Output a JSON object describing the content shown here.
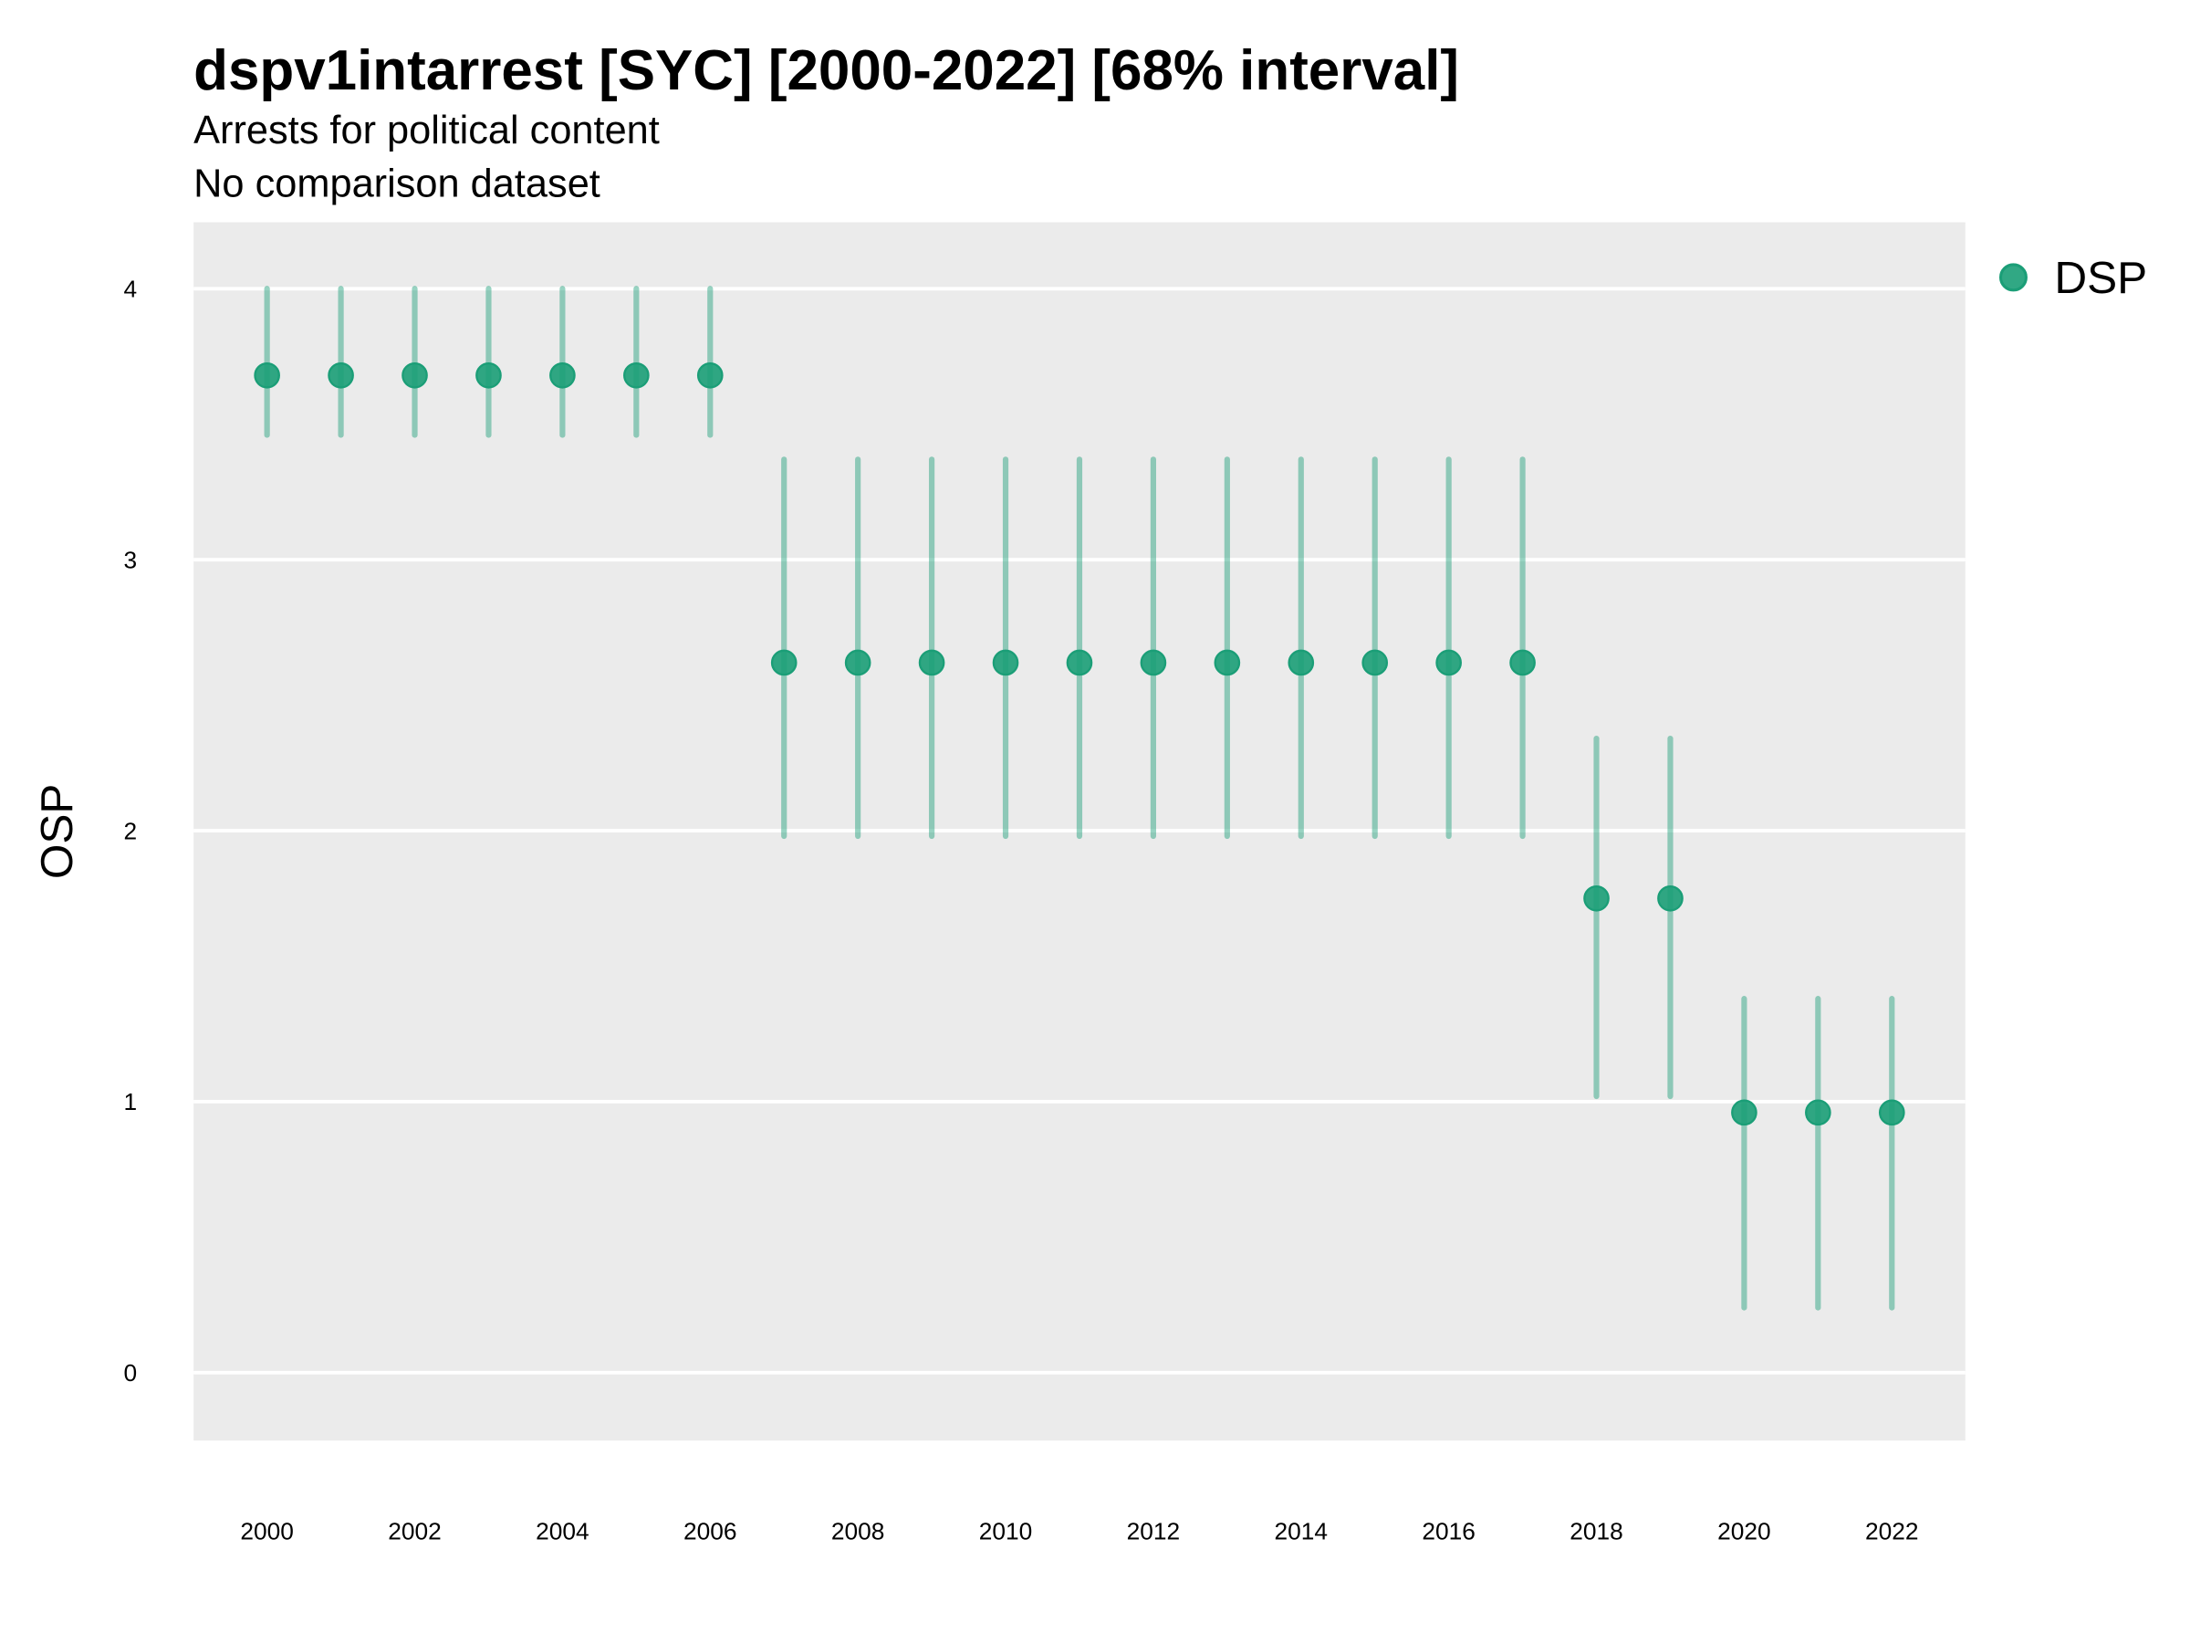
{
  "chart_data": {
    "type": "scatter",
    "title": "dspv1intarrest [SYC] [2000-2022] [68% interval]",
    "subtitle": "Arrests for political content",
    "subtitle2": "No comparison dataset",
    "xlabel": "",
    "ylabel": "OSP",
    "xlim": [
      1999,
      2023
    ],
    "ylim": [
      -0.25,
      4.25
    ],
    "grid": true,
    "legend_position": "right",
    "x_ticks": [
      "2000",
      "2002",
      "2004",
      "2006",
      "2008",
      "2010",
      "2012",
      "2014",
      "2016",
      "2018",
      "2020",
      "2022"
    ],
    "y_ticks": [
      "0",
      "1",
      "2",
      "3",
      "4"
    ],
    "series": [
      {
        "name": "DSP",
        "color": "#1b9e77",
        "x": [
          2000,
          2001,
          2002,
          2003,
          2004,
          2005,
          2006,
          2007,
          2008,
          2009,
          2010,
          2011,
          2012,
          2013,
          2014,
          2015,
          2016,
          2017,
          2018,
          2019,
          2020,
          2021,
          2022
        ],
        "y": [
          3.68,
          3.68,
          3.68,
          3.68,
          3.68,
          3.68,
          3.68,
          2.62,
          2.62,
          2.62,
          2.62,
          2.62,
          2.62,
          2.62,
          2.62,
          2.62,
          2.62,
          2.62,
          1.75,
          1.75,
          0.96,
          0.96,
          0.96
        ],
        "lower": [
          3.46,
          3.46,
          3.46,
          3.46,
          3.46,
          3.46,
          3.46,
          1.98,
          1.98,
          1.98,
          1.98,
          1.98,
          1.98,
          1.98,
          1.98,
          1.98,
          1.98,
          1.98,
          1.02,
          1.02,
          0.24,
          0.24,
          0.24
        ],
        "upper": [
          4.0,
          4.0,
          4.0,
          4.0,
          4.0,
          4.0,
          4.0,
          3.37,
          3.37,
          3.37,
          3.37,
          3.37,
          3.37,
          3.37,
          3.37,
          3.37,
          3.37,
          3.37,
          2.34,
          2.34,
          1.38,
          1.38,
          1.38
        ]
      }
    ]
  }
}
